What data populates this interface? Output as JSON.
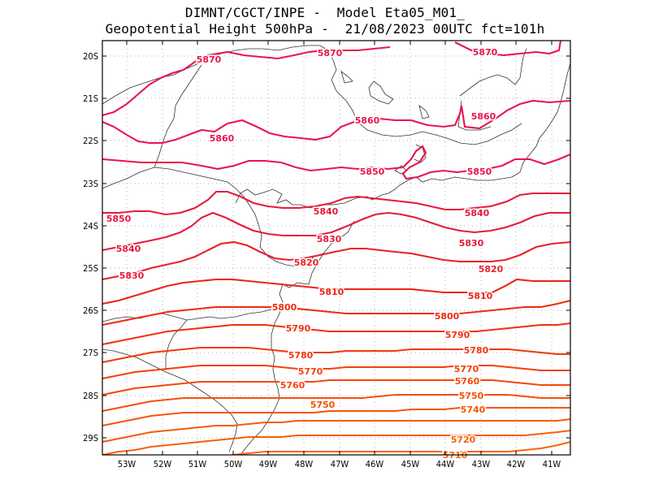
{
  "title": {
    "line1": "DIMNT/CGCT/INPE -  Model Eta05_M01_",
    "line2": "Geopotential Height 500hPa -  21/08/2023 00UTC fct=101h"
  },
  "axes": {
    "lat_labels": [
      "20S",
      "21S",
      "22S",
      "23S",
      "24S",
      "25S",
      "26S",
      "27S",
      "28S",
      "29S"
    ],
    "lon_labels": [
      "53W",
      "52W",
      "51W",
      "50W",
      "49W",
      "48W",
      "47W",
      "46W",
      "45W",
      "44W",
      "43W",
      "42W",
      "41W"
    ]
  },
  "contour_labels": [
    {
      "text": "5870",
      "color": "#e8154e"
    },
    {
      "text": "5870",
      "color": "#e8154e"
    },
    {
      "text": "5870",
      "color": "#e8154e"
    },
    {
      "text": "5860",
      "color": "#e8154e"
    },
    {
      "text": "5860",
      "color": "#e8154e"
    },
    {
      "text": "5860",
      "color": "#e8154e"
    },
    {
      "text": "5850",
      "color": "#e8154e"
    },
    {
      "text": "5850",
      "color": "#e8154e"
    },
    {
      "text": "5850",
      "color": "#e8154e"
    },
    {
      "text": "5840",
      "color": "#e61a3c"
    },
    {
      "text": "5840",
      "color": "#e61a3c"
    },
    {
      "text": "5840",
      "color": "#e61a3c"
    },
    {
      "text": "5830",
      "color": "#e61a3c"
    },
    {
      "text": "5830",
      "color": "#e61a3c"
    },
    {
      "text": "5830",
      "color": "#e61a3c"
    },
    {
      "text": "5820",
      "color": "#e8202a"
    },
    {
      "text": "5820",
      "color": "#e8202a"
    },
    {
      "text": "5810",
      "color": "#ec2418"
    },
    {
      "text": "5810",
      "color": "#ec2418"
    },
    {
      "text": "5800",
      "color": "#ef2a10"
    },
    {
      "text": "5800",
      "color": "#ef2a10"
    },
    {
      "text": "5790",
      "color": "#f1300e"
    },
    {
      "text": "5790",
      "color": "#f1300e"
    },
    {
      "text": "5780",
      "color": "#f2380c"
    },
    {
      "text": "5780",
      "color": "#f2380c"
    },
    {
      "text": "5770",
      "color": "#f4400b"
    },
    {
      "text": "5770",
      "color": "#f4400b"
    },
    {
      "text": "5760",
      "color": "#f5470a"
    },
    {
      "text": "5760",
      "color": "#f5470a"
    },
    {
      "text": "5750",
      "color": "#f64f09"
    },
    {
      "text": "5750",
      "color": "#f64f09"
    },
    {
      "text": "5740",
      "color": "#f75508"
    },
    {
      "text": "5720",
      "color": "#f86007"
    },
    {
      "text": "5710",
      "color": "#f96606"
    }
  ]
}
